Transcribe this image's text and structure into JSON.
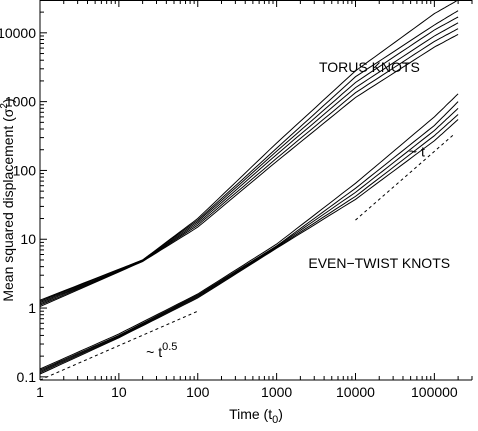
{
  "chart_data": {
    "type": "line",
    "xscale": "log",
    "yscale": "log",
    "xlim": [
      1,
      300000
    ],
    "ylim": [
      0.09,
      30000
    ],
    "xlabel": "Time (t",
    "xlabel_sub": "0",
    "xlabel_suffix": ")",
    "ylabel": "Mean squared displacement (σ",
    "ylabel_sup": "2",
    "ylabel_suffix": ")",
    "x_ticks": [
      {
        "value": 1,
        "label": "1"
      },
      {
        "value": 10,
        "label": "10"
      },
      {
        "value": 100,
        "label": "100"
      },
      {
        "value": 1000,
        "label": "1000"
      },
      {
        "value": 10000,
        "label": "10000"
      },
      {
        "value": 100000,
        "label": "100000"
      }
    ],
    "y_ticks": [
      {
        "value": 0.1,
        "label": "0.1"
      },
      {
        "value": 1,
        "label": "1"
      },
      {
        "value": 10,
        "label": "10"
      },
      {
        "value": 100,
        "label": "100"
      },
      {
        "value": 1000,
        "label": "1000"
      },
      {
        "value": 10000,
        "label": "10000"
      }
    ],
    "grid": false,
    "legend": "none",
    "annotations": [
      {
        "text": "TORUS KNOTS",
        "x": 15000,
        "y": 3200,
        "anchor": "middle"
      },
      {
        "text": "EVEN−TWIST KNOTS",
        "x": 20000,
        "y": 4.5,
        "anchor": "middle"
      },
      {
        "text": "~ t",
        "x": 60000,
        "y": 190,
        "anchor": "middle"
      },
      {
        "text": "~ t",
        "sup": "0.5",
        "x": 35,
        "y": 0.23,
        "anchor": "middle"
      }
    ],
    "groups": [
      {
        "label": "TORUS KNOTS",
        "curves": [
          {
            "x": [
              1,
              20,
              100,
              1000,
              10000,
              100000,
              200000
            ],
            "y": [
              1.3,
              5.0,
              20,
              250,
              2800,
              19000,
              30000
            ]
          },
          {
            "x": [
              1,
              20,
              100,
              1000,
              10000,
              100000,
              200000
            ],
            "y": [
              1.25,
              5.0,
              19,
              210,
              2300,
              13000,
              21000
            ]
          },
          {
            "x": [
              1,
              20,
              100,
              1000,
              10000,
              100000,
              200000
            ],
            "y": [
              1.2,
              4.9,
              18,
              190,
              1900,
              11000,
              17000
            ]
          },
          {
            "x": [
              1,
              20,
              100,
              1000,
              10000,
              100000,
              200000
            ],
            "y": [
              1.15,
              4.85,
              17,
              170,
              1600,
              9000,
              14000
            ]
          },
          {
            "x": [
              1,
              20,
              100,
              1000,
              10000,
              100000,
              200000
            ],
            "y": [
              1.1,
              4.8,
              16,
              150,
              1350,
              7500,
              11500
            ]
          },
          {
            "x": [
              1,
              20,
              100,
              1000,
              10000,
              100000,
              200000
            ],
            "y": [
              1.05,
              4.75,
              15,
              135,
              1150,
              6200,
              9500
            ]
          }
        ]
      },
      {
        "label": "EVEN−TWIST KNOTS",
        "curves": [
          {
            "x": [
              1,
              10,
              100,
              1000,
              10000,
              100000,
              200000
            ],
            "y": [
              0.13,
              0.42,
              1.6,
              8.5,
              65,
              600,
              1300
            ]
          },
          {
            "x": [
              1,
              10,
              100,
              1000,
              10000,
              100000,
              200000
            ],
            "y": [
              0.125,
              0.4,
              1.55,
              8.0,
              55,
              450,
              1000
            ]
          },
          {
            "x": [
              1,
              10,
              100,
              1000,
              10000,
              100000,
              200000
            ],
            "y": [
              0.12,
              0.39,
              1.5,
              7.8,
              48,
              380,
              800
            ]
          },
          {
            "x": [
              1,
              10,
              100,
              1000,
              10000,
              100000,
              200000
            ],
            "y": [
              0.115,
              0.38,
              1.45,
              7.6,
              42,
              320,
              650
            ]
          },
          {
            "x": [
              1,
              10,
              100,
              1000,
              10000,
              100000,
              200000
            ],
            "y": [
              0.11,
              0.37,
              1.4,
              7.4,
              38,
              270,
              550
            ]
          }
        ]
      }
    ],
    "reference_lines": [
      {
        "label": "~ t",
        "x": [
          10000,
          180000
        ],
        "y": [
          19,
          340
        ]
      },
      {
        "label": "~ t^0.5",
        "x": [
          1,
          100
        ],
        "y": [
          0.09,
          0.9
        ]
      }
    ]
  }
}
